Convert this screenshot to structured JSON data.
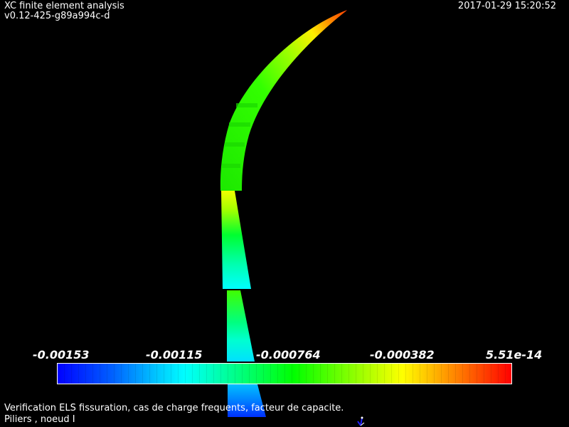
{
  "header": {
    "title": "XC finite element analysis",
    "version": "v0.12-425-g89a994c-d",
    "timestamp": "2017-01-29 15:20:52"
  },
  "caption": {
    "line1": "Verification ELS fissuration, cas de charge frequents, facteur de capacite.",
    "line2": "Piliers , noeud I"
  },
  "colorbar": {
    "labels": [
      "-0.00153",
      "-0.00115",
      "-0.000764",
      "-0.000382",
      "5.51e-14"
    ],
    "colors": {
      "min": "#0000ff",
      "low": "#00ffff",
      "mid": "#00ff00",
      "high": "#ffff00",
      "max": "#ff0000"
    }
  },
  "icons": {
    "axes": "axes-triad-icon"
  }
}
